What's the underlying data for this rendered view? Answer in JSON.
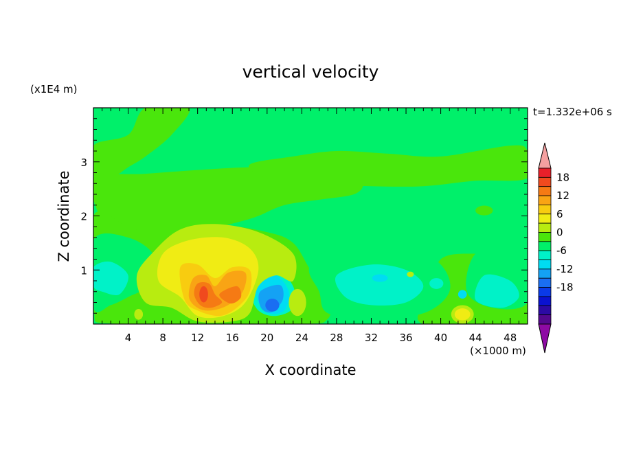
{
  "chart_data": {
    "type": "heatmap",
    "title": "vertical velocity",
    "xlabel": "X coordinate",
    "ylabel": "Z coordinate",
    "x_unit": "(×1000 m)",
    "y_unit": "(x1E4 m)",
    "time_label": "t=1.332e+06 s",
    "xlim": [
      0,
      50
    ],
    "ylim": [
      0,
      4
    ],
    "x_ticks": [
      4,
      8,
      12,
      16,
      20,
      24,
      28,
      32,
      36,
      40,
      44,
      48
    ],
    "y_ticks": [
      1,
      2,
      3
    ],
    "colorbar": {
      "labels": [
        18,
        12,
        6,
        0,
        -6,
        -12,
        -18
      ],
      "levels": [
        21,
        18,
        15,
        12,
        9,
        6,
        3,
        0,
        -3,
        -6,
        -9,
        -12,
        -15,
        -18,
        -21
      ],
      "colors": [
        "#f4a0a0",
        "#e8202a",
        "#f04a1e",
        "#f57a14",
        "#f9a414",
        "#f8cc10",
        "#f0ec14",
        "#b8ec10",
        "#4ae60c",
        "#00f06a",
        "#00f2c8",
        "#00dcf2",
        "#14a2f4",
        "#1a6ef2",
        "#0a3ae8",
        "#0a12d0",
        "#2c0aa4",
        "#54088e",
        "#8e0aa4"
      ],
      "extend": "both"
    },
    "features": [
      {
        "shape": "poly",
        "level": 1,
        "pts": [
          [
            0,
            3.3
          ],
          [
            4,
            3.5
          ],
          [
            6,
            4
          ],
          [
            11,
            4
          ],
          [
            9,
            3.5
          ],
          [
            6,
            3.1
          ],
          [
            4,
            2.9
          ],
          [
            2,
            2.7
          ],
          [
            0,
            2.75
          ]
        ]
      },
      {
        "shape": "poly",
        "level": 1,
        "pts": [
          [
            0,
            2.72
          ],
          [
            6,
            2.78
          ],
          [
            12,
            2.85
          ],
          [
            18,
            2.9
          ],
          [
            22,
            2.87
          ],
          [
            29,
            2.8
          ],
          [
            31,
            2.6
          ],
          [
            30,
            2.4
          ],
          [
            26,
            2.3
          ],
          [
            22,
            2.2
          ],
          [
            19,
            2.0
          ],
          [
            17,
            1.9
          ],
          [
            12,
            1.7
          ],
          [
            6,
            1.5
          ],
          [
            2,
            1.7
          ],
          [
            0,
            2.3
          ]
        ]
      },
      {
        "shape": "poly",
        "level": 1,
        "pts": [
          [
            0,
            2.0
          ],
          [
            4,
            1.8
          ],
          [
            8,
            1.6
          ],
          [
            11,
            1.75
          ],
          [
            14,
            1.85
          ],
          [
            20,
            1.7
          ],
          [
            23,
            1.5
          ],
          [
            25,
            1.0
          ],
          [
            27,
            0.6
          ],
          [
            27,
            0.1
          ],
          [
            23,
            0.0
          ],
          [
            3,
            0.0
          ],
          [
            0,
            0.3
          ]
        ]
      },
      {
        "shape": "poly",
        "level": 1,
        "pts": [
          [
            18,
            2.95
          ],
          [
            23,
            3.1
          ],
          [
            28,
            3.2
          ],
          [
            34,
            3.15
          ],
          [
            40,
            3.1
          ],
          [
            48,
            3.3
          ],
          [
            50,
            3.2
          ],
          [
            50,
            2.7
          ],
          [
            44,
            2.65
          ],
          [
            38,
            2.55
          ],
          [
            32,
            2.55
          ],
          [
            26,
            2.6
          ],
          [
            20,
            2.7
          ]
        ]
      },
      {
        "shape": "ell",
        "level": 1,
        "cx": 45,
        "cy": 2.1,
        "rx": 1.0,
        "ry": 0.09
      },
      {
        "shape": "poly",
        "level": 1,
        "pts": [
          [
            40,
            1.2
          ],
          [
            44,
            1.3
          ],
          [
            48,
            1.2
          ],
          [
            50,
            1.1
          ],
          [
            50,
            0
          ],
          [
            38,
            0
          ],
          [
            39,
            0.6
          ]
        ]
      },
      {
        "shape": "poly",
        "level": 0,
        "pts": [
          [
            0,
            1.55
          ],
          [
            4,
            1.6
          ],
          [
            7,
            1.25
          ],
          [
            6,
            0.7
          ],
          [
            4,
            0.5
          ],
          [
            2,
            0.35
          ],
          [
            0,
            0.3
          ]
        ]
      },
      {
        "shape": "poly",
        "level": 0,
        "pts": [
          [
            25,
            1.1
          ],
          [
            30,
            1.6
          ],
          [
            36,
            1.45
          ],
          [
            40,
            1.1
          ],
          [
            41,
            0.6
          ],
          [
            38,
            0.2
          ],
          [
            32,
            0.1
          ],
          [
            27,
            0.2
          ],
          [
            26,
            0.6
          ]
        ]
      },
      {
        "shape": "poly",
        "level": 0,
        "pts": [
          [
            44,
            1.3
          ],
          [
            48,
            1.4
          ],
          [
            50,
            1.3
          ],
          [
            50,
            0.4
          ],
          [
            46,
            0.3
          ],
          [
            43,
            0.6
          ]
        ]
      },
      {
        "shape": "poly",
        "level": -1,
        "pts": [
          [
            0,
            1.05
          ],
          [
            2,
            1.15
          ],
          [
            4,
            0.9
          ],
          [
            3,
            0.55
          ],
          [
            1,
            0.6
          ],
          [
            0,
            0.7
          ]
        ]
      },
      {
        "shape": "poly",
        "level": -1,
        "pts": [
          [
            28,
            0.9
          ],
          [
            32,
            1.1
          ],
          [
            36,
            1.0
          ],
          [
            38,
            0.7
          ],
          [
            36,
            0.4
          ],
          [
            32,
            0.35
          ],
          [
            29,
            0.5
          ]
        ]
      },
      {
        "shape": "poly",
        "level": -1,
        "pts": [
          [
            45,
            0.9
          ],
          [
            48,
            0.8
          ],
          [
            49,
            0.5
          ],
          [
            47,
            0.3
          ],
          [
            44,
            0.45
          ]
        ]
      },
      {
        "shape": "poly",
        "level": -1,
        "pts": [
          [
            18,
            0.95
          ],
          [
            21,
            1.0
          ],
          [
            23,
            0.7
          ],
          [
            23,
            0.3
          ],
          [
            21,
            0.15
          ],
          [
            19,
            0.25
          ],
          [
            18,
            0.6
          ]
        ]
      },
      {
        "shape": "poly",
        "level": -2,
        "pts": [
          [
            18.6,
            0.85
          ],
          [
            21,
            0.9
          ],
          [
            22.5,
            0.6
          ],
          [
            22,
            0.25
          ],
          [
            20.2,
            0.2
          ],
          [
            19,
            0.4
          ]
        ]
      },
      {
        "shape": "poly",
        "level": -3,
        "pts": [
          [
            19.2,
            0.6
          ],
          [
            21.5,
            0.72
          ],
          [
            21.8,
            0.45
          ],
          [
            20.5,
            0.22
          ],
          [
            19.3,
            0.3
          ]
        ]
      },
      {
        "shape": "ell",
        "level": -4,
        "cx": 20.6,
        "cy": 0.35,
        "rx": 0.8,
        "ry": 0.12
      },
      {
        "shape": "ell",
        "level": -2,
        "cx": 33,
        "cy": 0.85,
        "rx": 0.9,
        "ry": 0.07
      },
      {
        "shape": "ell",
        "level": -2,
        "cx": 42.5,
        "cy": 0.55,
        "rx": 0.5,
        "ry": 0.08
      },
      {
        "shape": "ell",
        "level": -1,
        "cx": 39.5,
        "cy": 0.75,
        "rx": 0.8,
        "ry": 0.1
      },
      {
        "shape": "poly",
        "level": 2,
        "pts": [
          [
            7,
            1.35
          ],
          [
            10,
            1.75
          ],
          [
            14,
            1.85
          ],
          [
            19,
            1.7
          ],
          [
            23,
            1.3
          ],
          [
            23,
            0.8
          ],
          [
            21,
            0.9
          ],
          [
            19,
            0.7
          ],
          [
            18,
            0.2
          ],
          [
            16,
            0.05
          ],
          [
            12,
            0.05
          ],
          [
            9,
            0.3
          ],
          [
            6,
            0.4
          ],
          [
            5,
            0.9
          ]
        ]
      },
      {
        "shape": "poly",
        "level": 3,
        "pts": [
          [
            8,
            1.3
          ],
          [
            11,
            1.55
          ],
          [
            15,
            1.6
          ],
          [
            18,
            1.4
          ],
          [
            19,
            1.0
          ],
          [
            17.5,
            0.4
          ],
          [
            15,
            0.15
          ],
          [
            12,
            0.15
          ],
          [
            10,
            0.5
          ],
          [
            7.5,
            0.8
          ]
        ]
      },
      {
        "shape": "poly",
        "level": 4,
        "pts": [
          [
            10,
            1.05
          ],
          [
            12,
            1.1
          ],
          [
            14,
            0.85
          ],
          [
            16,
            1.05
          ],
          [
            18,
            1.0
          ],
          [
            18,
            0.6
          ],
          [
            16.5,
            0.3
          ],
          [
            14.5,
            0.15
          ],
          [
            12,
            0.25
          ],
          [
            10.5,
            0.45
          ]
        ]
      },
      {
        "shape": "poly",
        "level": 5,
        "pts": [
          [
            11.5,
            0.85
          ],
          [
            13,
            0.9
          ],
          [
            14,
            0.7
          ],
          [
            15.5,
            0.95
          ],
          [
            17.5,
            0.95
          ],
          [
            17.2,
            0.6
          ],
          [
            15.5,
            0.35
          ],
          [
            13.5,
            0.25
          ],
          [
            12,
            0.3
          ],
          [
            11,
            0.5
          ]
        ]
      },
      {
        "shape": "poly",
        "level": 6,
        "pts": [
          [
            12,
            0.75
          ],
          [
            13.3,
            0.75
          ],
          [
            14,
            0.55
          ],
          [
            14.8,
            0.4
          ],
          [
            13.5,
            0.3
          ],
          [
            12.3,
            0.35
          ],
          [
            11.6,
            0.55
          ]
        ]
      },
      {
        "shape": "poly",
        "level": 6,
        "pts": [
          [
            14.5,
            0.55
          ],
          [
            16.5,
            0.7
          ],
          [
            17,
            0.5
          ],
          [
            15.8,
            0.38
          ]
        ]
      },
      {
        "shape": "ell",
        "level": 7,
        "cx": 12.7,
        "cy": 0.55,
        "rx": 0.5,
        "ry": 0.15
      },
      {
        "shape": "ell",
        "level": 2,
        "cx": 42.5,
        "cy": 0.18,
        "rx": 1.3,
        "ry": 0.17
      },
      {
        "shape": "ell",
        "level": 3,
        "cx": 42.5,
        "cy": 0.18,
        "rx": 0.9,
        "ry": 0.11
      },
      {
        "shape": "ell",
        "level": 2,
        "cx": 23.5,
        "cy": 0.4,
        "rx": 1.0,
        "ry": 0.25
      },
      {
        "shape": "ell",
        "level": 2,
        "cx": 36.5,
        "cy": 0.92,
        "rx": 0.4,
        "ry": 0.05
      },
      {
        "shape": "ell",
        "level": 2,
        "cx": 5.2,
        "cy": 0.18,
        "rx": 0.5,
        "ry": 0.1
      }
    ]
  }
}
